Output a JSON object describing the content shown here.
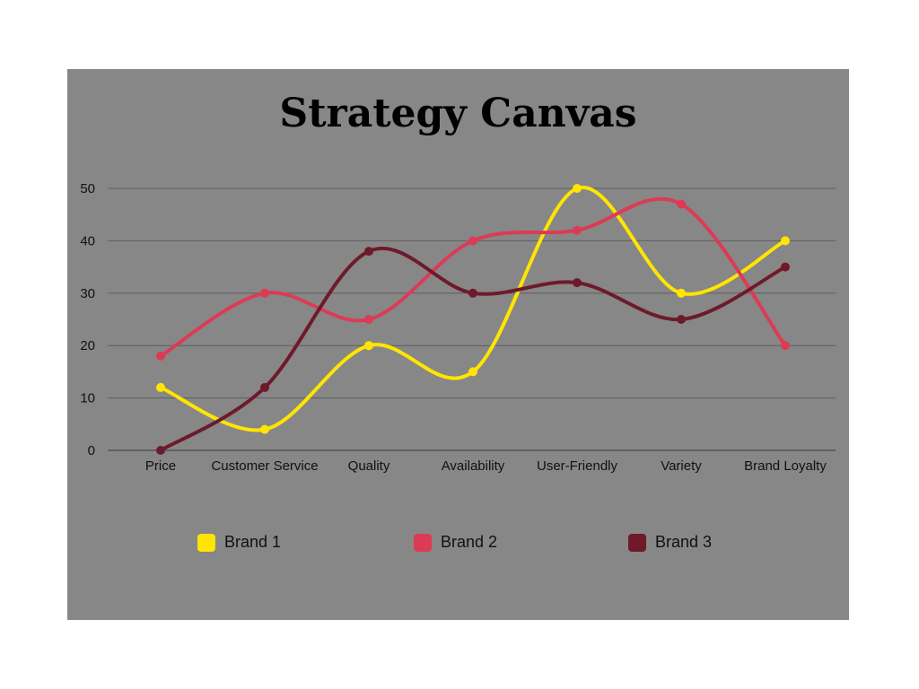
{
  "chart_data": {
    "type": "line",
    "title": "Strategy Canvas",
    "categories": [
      "Price",
      "Customer Service",
      "Quality",
      "Availability",
      "User-Friendly",
      "Variety",
      "Brand Loyalty"
    ],
    "ylim": [
      0,
      50
    ],
    "yticks": [
      0,
      10,
      20,
      30,
      40,
      50
    ],
    "grid": true,
    "legend_position": "bottom",
    "series": [
      {
        "name": "Brand 1",
        "color": "#FFE500",
        "values": [
          12,
          4,
          20,
          15,
          50,
          30,
          40
        ]
      },
      {
        "name": "Brand 2",
        "color": "#DC3B55",
        "values": [
          18,
          30,
          25,
          40,
          42,
          47,
          20
        ]
      },
      {
        "name": "Brand 3",
        "color": "#6E1A2B",
        "values": [
          0,
          12,
          38,
          30,
          32,
          25,
          35
        ]
      }
    ]
  }
}
